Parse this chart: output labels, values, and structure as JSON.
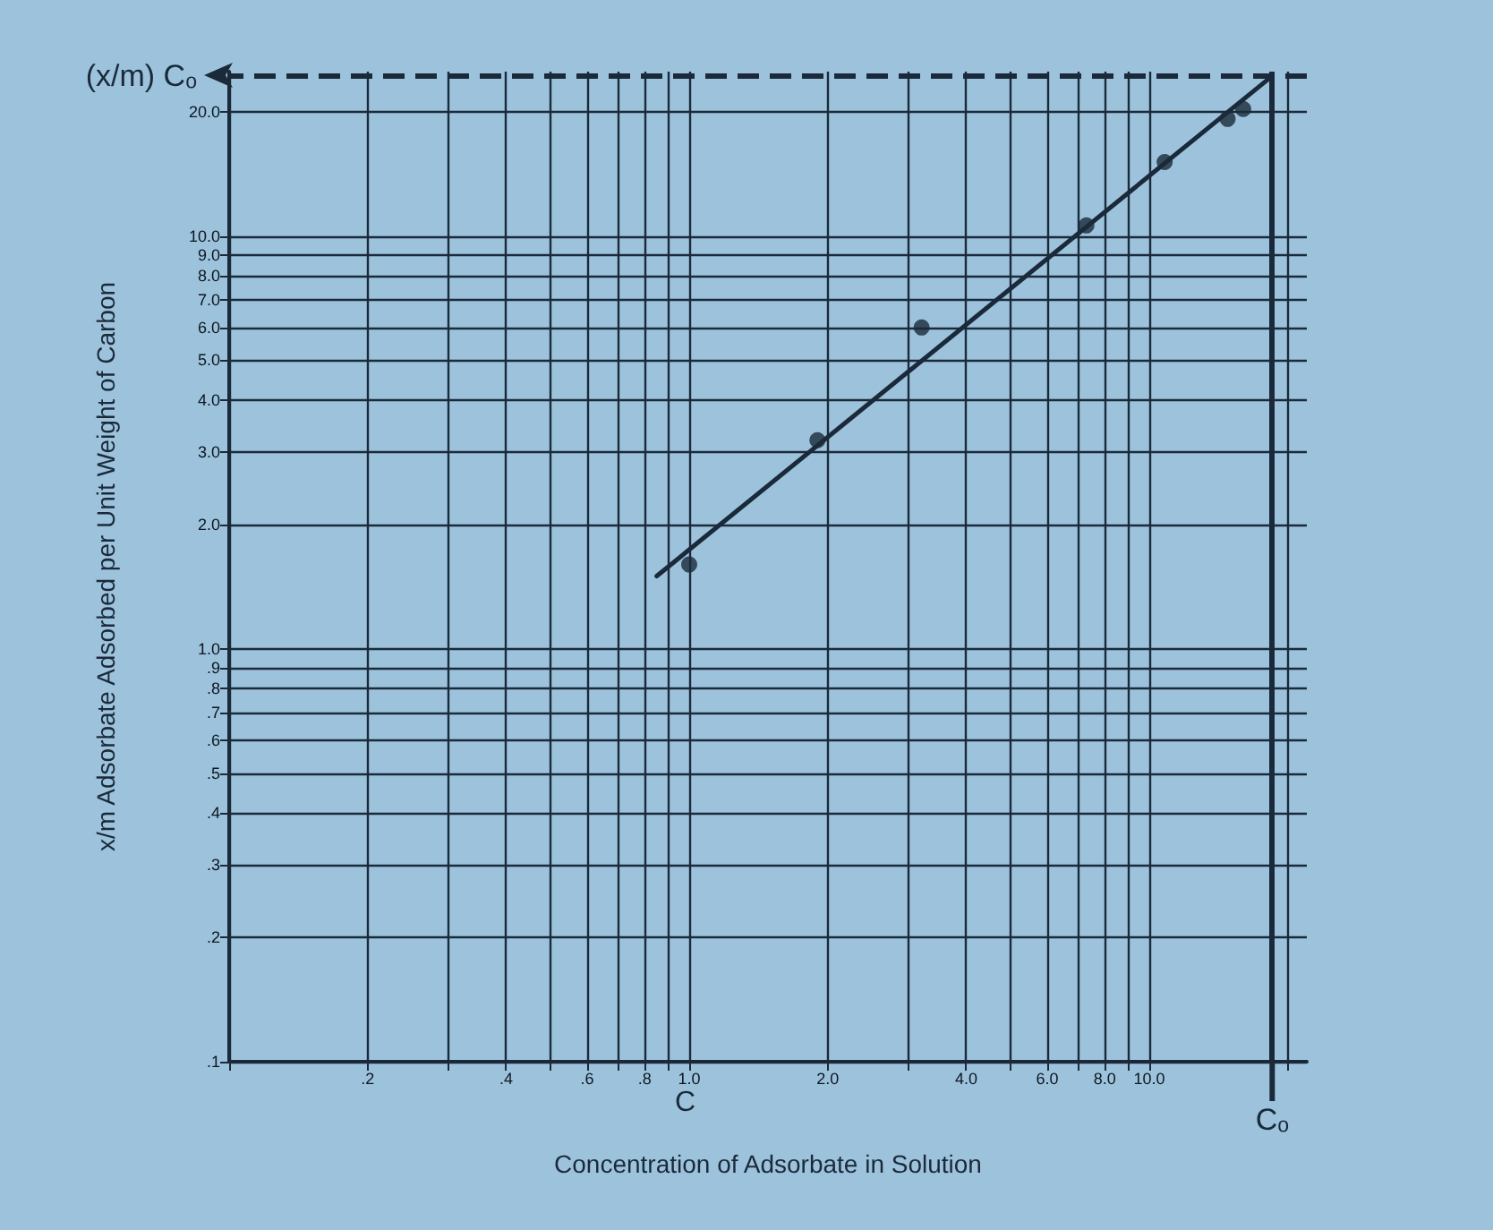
{
  "chart_data": {
    "type": "scatter",
    "xlabel": "Concentration of Adsorbate in Solution",
    "ylabel": "x/m Adsorbate Adsorbed per Unit Weight of Carbon",
    "log": "xy",
    "grid": true,
    "marker": "circle",
    "xlim": [
      0.1,
      22
    ],
    "ylim": [
      0.1,
      25
    ],
    "xticks": [
      {
        "value": 0.1,
        "label": null
      },
      {
        "value": 0.2,
        "label": ".2"
      },
      {
        "value": 0.3,
        "label": null
      },
      {
        "value": 0.4,
        "label": ".4"
      },
      {
        "value": 0.5,
        "label": null
      },
      {
        "value": 0.6,
        "label": ".6"
      },
      {
        "value": 0.7,
        "label": null
      },
      {
        "value": 0.8,
        "label": ".8"
      },
      {
        "value": 0.9,
        "label": null
      },
      {
        "value": 1,
        "label": "1.0"
      },
      {
        "value": 2,
        "label": "2.0"
      },
      {
        "value": 3,
        "label": null
      },
      {
        "value": 4,
        "label": "4.0"
      },
      {
        "value": 5,
        "label": null
      },
      {
        "value": 6,
        "label": "6.0"
      },
      {
        "value": 7,
        "label": null
      },
      {
        "value": 8,
        "label": "8.0"
      },
      {
        "value": 9,
        "label": null
      },
      {
        "value": 10,
        "label": "10.0"
      },
      {
        "value": 20,
        "label": null
      }
    ],
    "yticks": [
      {
        "value": 0.1,
        "label": ".1"
      },
      {
        "value": 0.2,
        "label": ".2"
      },
      {
        "value": 0.3,
        "label": ".3"
      },
      {
        "value": 0.4,
        "label": ".4"
      },
      {
        "value": 0.5,
        "label": ".5"
      },
      {
        "value": 0.6,
        "label": ".6"
      },
      {
        "value": 0.7,
        "label": ".7"
      },
      {
        "value": 0.8,
        "label": ".8"
      },
      {
        "value": 0.9,
        "label": ".9"
      },
      {
        "value": 1,
        "label": "1.0"
      },
      {
        "value": 2,
        "label": "2.0"
      },
      {
        "value": 3,
        "label": "3.0"
      },
      {
        "value": 4,
        "label": "4.0"
      },
      {
        "value": 5,
        "label": "5.0"
      },
      {
        "value": 6,
        "label": "6.0"
      },
      {
        "value": 7,
        "label": "7.0"
      },
      {
        "value": 8,
        "label": "8.0"
      },
      {
        "value": 9,
        "label": "9.0"
      },
      {
        "value": 10,
        "label": "10.0"
      },
      {
        "value": 20,
        "label": "20.0"
      }
    ],
    "series": [
      {
        "color": "#1a2a3a",
        "x": [
          1.0,
          1.9,
          3.2,
          7.3,
          10.8,
          14.8,
          16.0
        ],
        "values": [
          1.6,
          3.2,
          6.0,
          10.6,
          15.1,
          19.2,
          20.3
        ]
      },
      {
        "type": "line",
        "marker": "none",
        "color": "#1a2a3a",
        "x": [
          0.85,
          18.5
        ],
        "values": [
          1.5,
          24.4
        ]
      }
    ],
    "ref_lines": [
      {
        "axis": "x",
        "value": 18.5,
        "label": "Cₒ",
        "color": "#1a2a3a",
        "line_style": "solid"
      },
      {
        "axis": "y",
        "value": 24.4,
        "label": "(x/m) Cₒ",
        "color": "#1a2a3a",
        "line_style": "dashed"
      }
    ],
    "annotations": [
      "C"
    ]
  }
}
